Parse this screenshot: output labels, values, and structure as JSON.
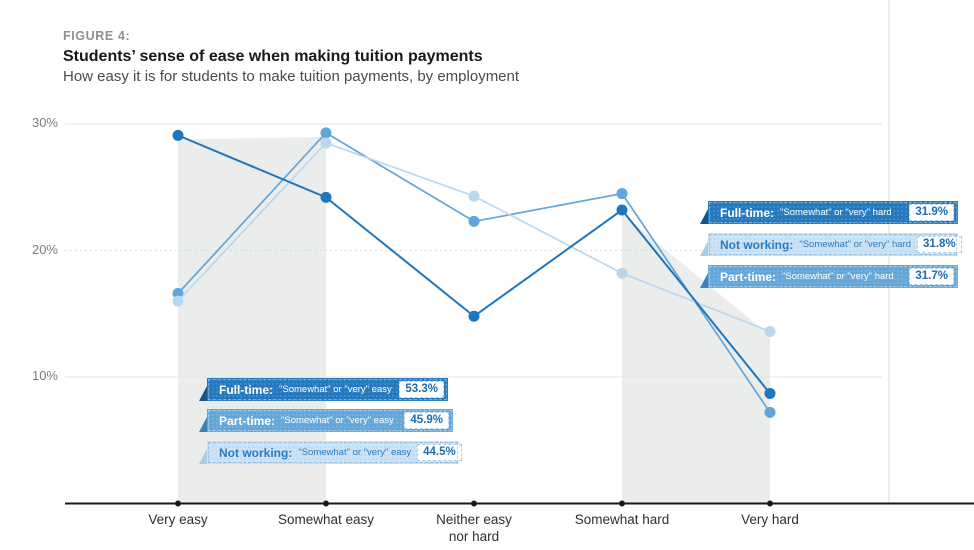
{
  "figure": {
    "label": "FIGURE 4:",
    "title": "Students’ sense of ease when making tuition payments",
    "subtitle": "How easy it is for students to make tuition payments, by employment"
  },
  "chart_data": {
    "type": "line",
    "categories": [
      "Very easy",
      "Somewhat easy",
      "Neither easy\nnor hard",
      "Somewhat hard",
      "Very hard"
    ],
    "series": [
      {
        "name": "Full-time",
        "color": "#1e76bd",
        "values": [
          29.1,
          24.2,
          14.8,
          23.2,
          8.7
        ]
      },
      {
        "name": "Part-time",
        "color": "#61a6d8",
        "values": [
          16.6,
          29.3,
          22.3,
          24.5,
          7.2
        ]
      },
      {
        "name": "Not working",
        "color": "#b9d7ee",
        "values": [
          16.0,
          28.5,
          24.3,
          18.2,
          13.6
        ]
      }
    ],
    "draw_order": [
      1,
      2,
      0
    ],
    "yticks": [
      {
        "label": "30%",
        "value": 30,
        "style": "solid"
      },
      {
        "label": "20%",
        "value": 20,
        "style": "dotted"
      },
      {
        "label": "10%",
        "value": 10,
        "style": "solid"
      }
    ],
    "ylim": [
      0,
      32.5
    ],
    "grid": "horizontal",
    "legend": "none",
    "highlight_bands": [
      {
        "from_category": 0,
        "to_category": 1,
        "v_from": 29.1,
        "v_to": 29.3
      },
      {
        "from_category": 3,
        "to_category": 4,
        "v_from": 23.2,
        "v_to": 13.6
      }
    ],
    "band_color": "#ebecec",
    "axis_color": "#16191c"
  },
  "callouts": {
    "easy": [
      {
        "label": "Full-time:",
        "quote": "\"Somewhat\" or \"very\" easy",
        "value": "53.3%",
        "tone": "dark"
      },
      {
        "label": "Part-time:",
        "quote": "\"Somewhat\" or \"very\" easy",
        "value": "45.9%",
        "tone": "medium"
      },
      {
        "label": "Not working:",
        "quote": "\"Somewhat\" or \"very\" easy",
        "value": "44.5%",
        "tone": "light"
      }
    ],
    "hard": [
      {
        "label": "Full-time:",
        "quote": "\"Somewhat\" or \"very\" hard",
        "value": "31.9%",
        "tone": "dark"
      },
      {
        "label": "Not working:",
        "quote": "\"Somewhat\" or \"very\" hard",
        "value": "31.8%",
        "tone": "light"
      },
      {
        "label": "Part-time:",
        "quote": "\"Somewhat\" or \"very\" hard",
        "value": "31.7%",
        "tone": "medium"
      }
    ]
  },
  "colors": {
    "accent_dark": "#1e76bd",
    "accent_medium": "#61a6d8",
    "accent_light": "#b9d7ee",
    "callout_dark_bg": "#2478bd",
    "callout_medium_bg": "#64a6d7",
    "callout_light_bg": "#cde2f4",
    "badge_text": "#1d6db0",
    "band": "#ebecec"
  }
}
